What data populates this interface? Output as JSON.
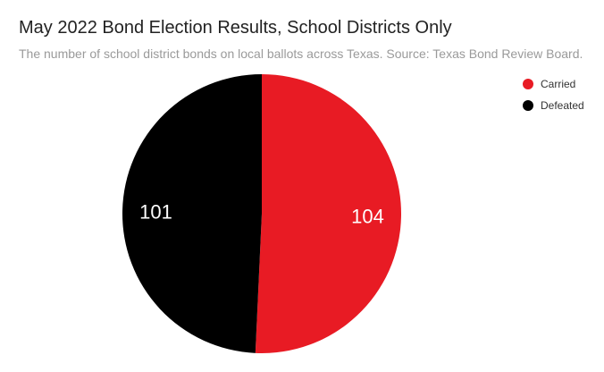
{
  "chart_data": {
    "type": "pie",
    "title": "May 2022 Bond Election Results, School Districts Only",
    "subtitle": "The number of school district bonds on local ballots across Texas. Source: Texas Bond Review Board.",
    "categories": [
      "Carried",
      "Defeated"
    ],
    "values": [
      104,
      101
    ],
    "colors": [
      "#e81b24",
      "#000000"
    ],
    "label_color": "#ffffff",
    "legend": "top-right"
  }
}
